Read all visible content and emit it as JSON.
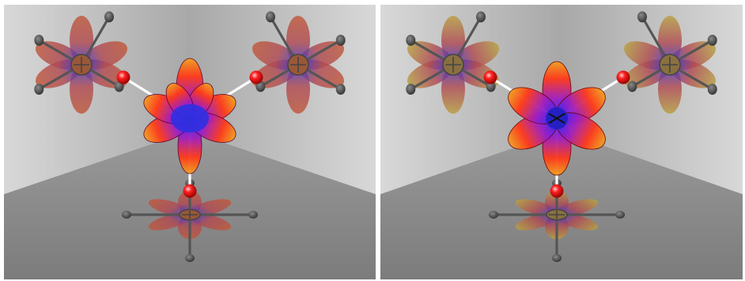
{
  "figure": {
    "panels": [
      {
        "id": "left",
        "central_lobe_style": "diffuse"
      },
      {
        "id": "right",
        "central_lobe_style": "sharp"
      }
    ],
    "colors": {
      "lobe_hot": "#ff3a1a",
      "lobe_warm": "#f0a020",
      "lobe_cool": "#2a2aff",
      "lobe_faded": "#b04a52",
      "atom": "#ff2020",
      "bond": "#ffffff",
      "stick": "#555555",
      "wall_light": "#d8d8d8",
      "wall_dark": "#a8a8a8",
      "floor": "#8a8a8a"
    }
  }
}
